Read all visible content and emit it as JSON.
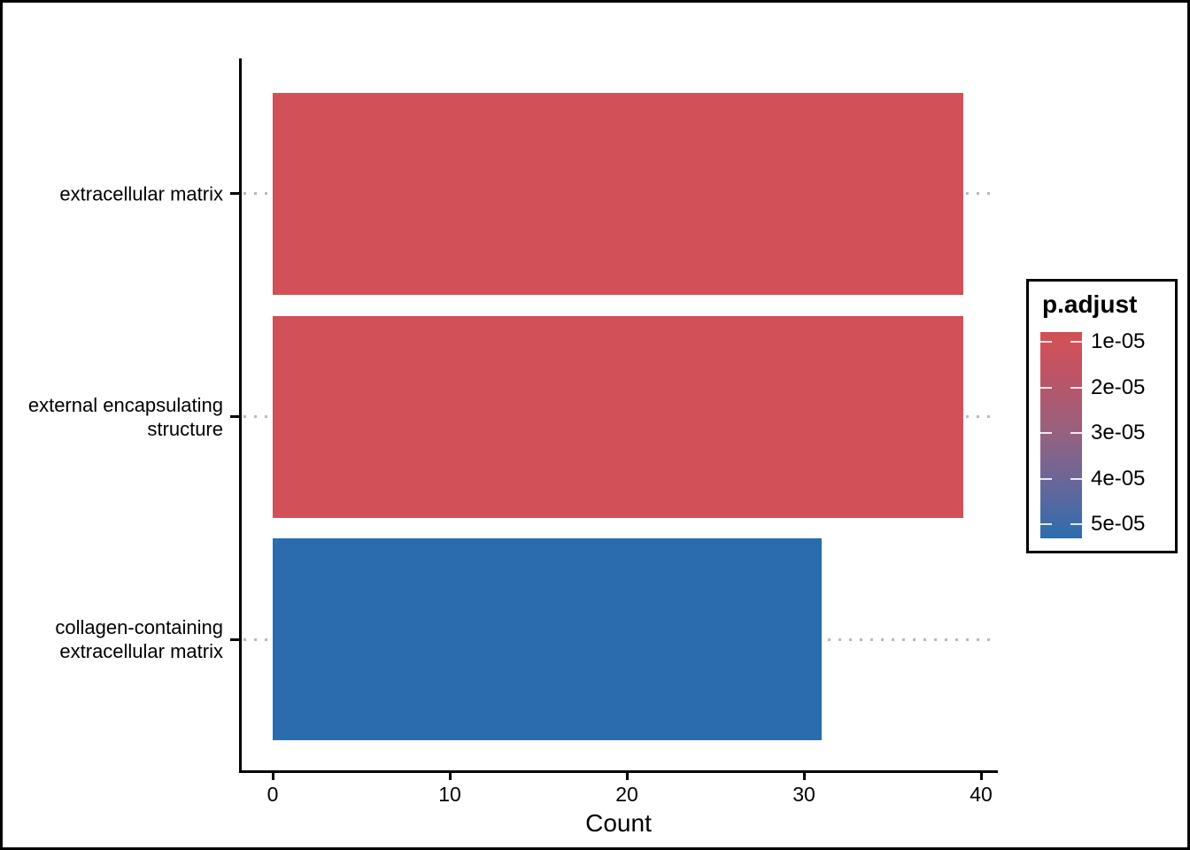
{
  "chart_data": {
    "type": "bar",
    "orientation": "horizontal",
    "title": "",
    "xlabel": "Count",
    "ylabel": "",
    "xlim": [
      0,
      40
    ],
    "x_ticks": [
      0,
      10,
      20,
      30,
      40
    ],
    "categories": [
      "extracellular matrix",
      "external encapsulating structure",
      "collagen-containing extracellular matrix"
    ],
    "category_labels_wrapped": [
      "extracellular matrix",
      "external encapsulating\nstructure",
      "collagen-containing\nextracellular matrix"
    ],
    "values": [
      39,
      39,
      31
    ],
    "bar_colors": [
      "#d25057",
      "#d25057",
      "#2b6cae"
    ],
    "color_variable": "p.adjust",
    "grid": "dotted-horizontal-at-each-category",
    "legend_position": "right",
    "background": "#ffffff",
    "axis_color": "#000000",
    "gridline_color": "#b9b9b9"
  },
  "legend": {
    "title": "p.adjust",
    "tick_labels": [
      "1e-05",
      "2e-05",
      "3e-05",
      "4e-05",
      "5e-05"
    ],
    "tick_colors": [
      "#d05159",
      "#b5566b",
      "#97617f",
      "#6d6697",
      "#3d6ba8"
    ],
    "end_colors": [
      "#d25057",
      "#2b6cae"
    ]
  }
}
